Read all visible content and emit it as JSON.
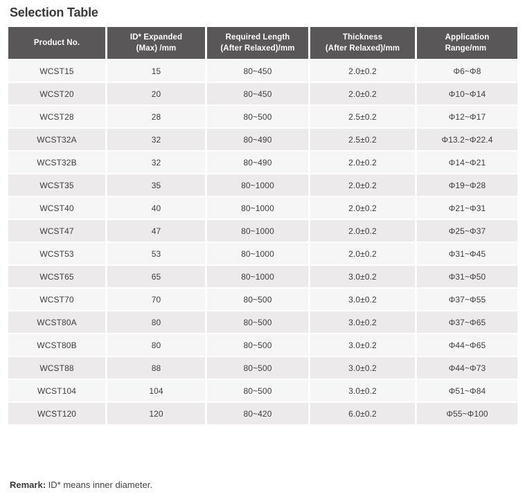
{
  "page": {
    "title": "Selection Table"
  },
  "colors": {
    "header_bg": "#595757",
    "header_text": "#ffffff",
    "row_odd_bg": "#f7f6f6",
    "row_even_bg": "#eceaea",
    "cell_text": "#3d3d3d",
    "title_text": "#3a3a3a"
  },
  "table": {
    "headers": [
      {
        "lines": [
          "Product No."
        ]
      },
      {
        "lines": [
          "ID* Expanded",
          "(Max) /mm"
        ]
      },
      {
        "lines": [
          "Required Length",
          "(After Relaxed)/mm"
        ]
      },
      {
        "lines": [
          "Thickness",
          "(After Relaxed)/mm"
        ]
      },
      {
        "lines": [
          "Application",
          "Range/mm"
        ]
      }
    ],
    "rows": [
      [
        "WCST15",
        "15",
        "80~450",
        "2.0±0.2",
        "Φ6~Φ8"
      ],
      [
        "WCST20",
        "20",
        "80~450",
        "2.0±0.2",
        "Φ10~Φ14"
      ],
      [
        "WCST28",
        "28",
        "80~500",
        "2.5±0.2",
        "Φ12~Φ17"
      ],
      [
        "WCST32A",
        "32",
        "80~490",
        "2.5±0.2",
        "Φ13.2~Φ22.4"
      ],
      [
        "WCST32B",
        "32",
        "80~490",
        "2.0±0.2",
        "Φ14~Φ21"
      ],
      [
        "WCST35",
        "35",
        "80~1000",
        "2.0±0.2",
        "Φ19~Φ28"
      ],
      [
        "WCST40",
        "40",
        "80~1000",
        "2.0±0.2",
        "Φ21~Φ31"
      ],
      [
        "WCST47",
        "47",
        "80~1000",
        "2.0±0.2",
        "Φ25~Φ37"
      ],
      [
        "WCST53",
        "53",
        "80~1000",
        "2.0±0.2",
        "Φ31~Φ45"
      ],
      [
        "WCST65",
        "65",
        "80~1000",
        "3.0±0.2",
        "Φ31~Φ50"
      ],
      [
        "WCST70",
        "70",
        "80~500",
        "3.0±0.2",
        "Φ37~Φ55"
      ],
      [
        "WCST80A",
        "80",
        "80~500",
        "3.0±0.2",
        "Φ37~Φ65"
      ],
      [
        "WCST80B",
        "80",
        "80~500",
        "3.0±0.2",
        "Φ44~Φ65"
      ],
      [
        "WCST88",
        "88",
        "80~500",
        "3.0±0.2",
        "Φ44~Φ73"
      ],
      [
        "WCST104",
        "104",
        "80~500",
        "3.0±0.2",
        "Φ51~Φ84"
      ],
      [
        "WCST120",
        "120",
        "80~420",
        "6.0±0.2",
        "Φ55~Φ100"
      ]
    ]
  },
  "remark": {
    "label": "Remark:",
    "text": " ID* means inner diameter."
  }
}
